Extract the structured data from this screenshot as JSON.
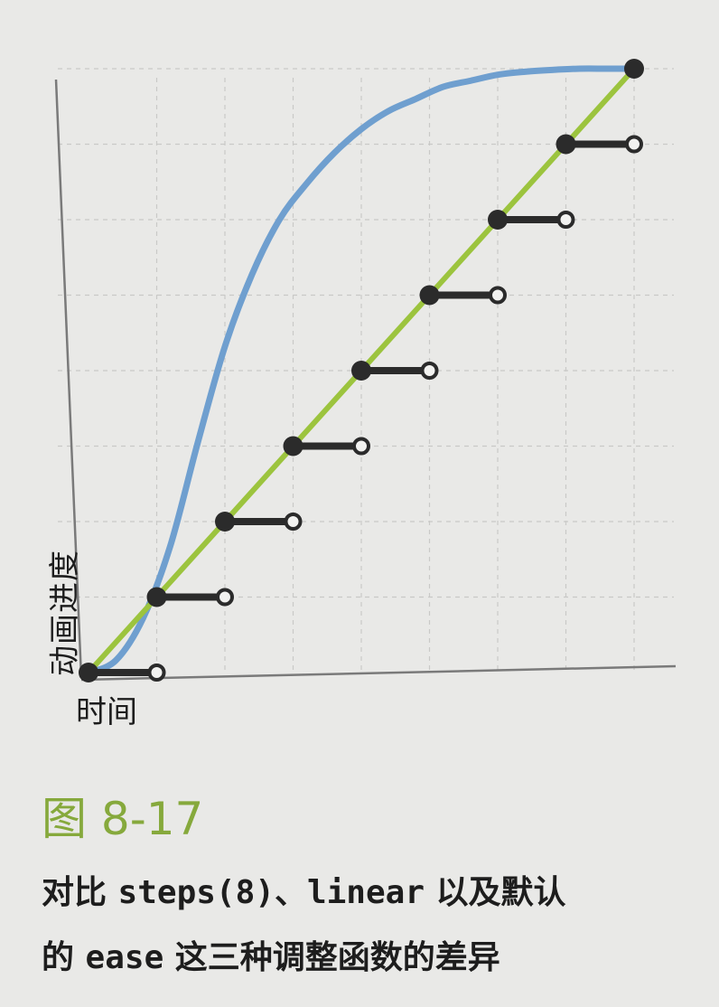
{
  "chart_data": {
    "type": "line",
    "xlabel": "时间",
    "ylabel": "动画进度",
    "xlim": [
      0,
      1
    ],
    "ylim": [
      0,
      1
    ],
    "grid": true,
    "grid_divisions": 8,
    "series": [
      {
        "name": "ease",
        "color": "#6f9fcf",
        "x": [
          0,
          0.05,
          0.1,
          0.15,
          0.2,
          0.25,
          0.3,
          0.35,
          0.4,
          0.45,
          0.5,
          0.55,
          0.6,
          0.65,
          0.7,
          0.75,
          0.8,
          0.85,
          0.9,
          0.95,
          1.0
        ],
        "y": [
          0,
          0.02,
          0.09,
          0.21,
          0.38,
          0.54,
          0.66,
          0.75,
          0.81,
          0.86,
          0.9,
          0.93,
          0.95,
          0.97,
          0.98,
          0.99,
          0.995,
          0.998,
          1.0,
          1.0,
          1.0
        ]
      },
      {
        "name": "linear",
        "color": "#9cc43e",
        "x": [
          0,
          1
        ],
        "y": [
          0,
          1
        ]
      },
      {
        "name": "steps(8)",
        "color": "#2b2b2b",
        "steps": [
          {
            "x0": 0.0,
            "x1": 0.125,
            "y": 0.0
          },
          {
            "x0": 0.125,
            "x1": 0.25,
            "y": 0.125
          },
          {
            "x0": 0.25,
            "x1": 0.375,
            "y": 0.25
          },
          {
            "x0": 0.375,
            "x1": 0.5,
            "y": 0.375
          },
          {
            "x0": 0.5,
            "x1": 0.625,
            "y": 0.5
          },
          {
            "x0": 0.625,
            "x1": 0.75,
            "y": 0.625
          },
          {
            "x0": 0.75,
            "x1": 0.875,
            "y": 0.75
          },
          {
            "x0": 0.875,
            "x1": 1.0,
            "y": 0.875
          }
        ],
        "end_point": {
          "x": 1.0,
          "y": 1.0
        }
      }
    ]
  },
  "caption": {
    "figure_number": "图 8-17",
    "line1_pre": "对比 ",
    "line1_code1": "steps(8)",
    "line1_mid": "、",
    "line1_code2": "linear",
    "line1_post": " 以及默认",
    "line2_pre": "的 ",
    "line2_code": "ease",
    "line2_post": " 这三种调整函数的差异"
  }
}
